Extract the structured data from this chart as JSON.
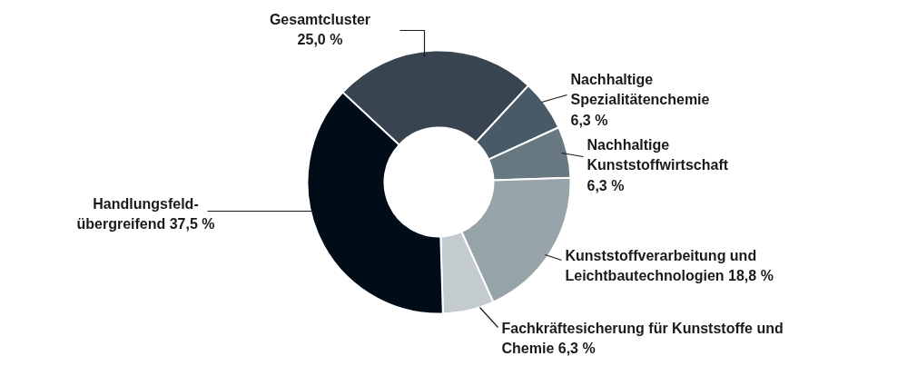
{
  "chart_data": {
    "type": "donut",
    "categories": [
      "Gesamtcluster",
      "Nachhaltige Spezialitätenchemie",
      "Nachhaltige Kunststoffwirtschaft",
      "Kunststoffverarbeitung und Leichtbautechnologien",
      "Fachkräftesicherung für Kunststoffe und Chemie",
      "Handlungsfeld-übergreifend"
    ],
    "values": [
      25.0,
      6.3,
      6.3,
      18.8,
      6.3,
      37.5
    ],
    "value_labels": [
      "25,0 %",
      "6,3 %",
      "6,3 %",
      "18,8 %",
      "6,3 %",
      "37,5 %"
    ],
    "colors": [
      "#38444f",
      "#485a68",
      "#687880",
      "#96a3a9",
      "#c4cbcf",
      "#000d19"
    ]
  }
}
